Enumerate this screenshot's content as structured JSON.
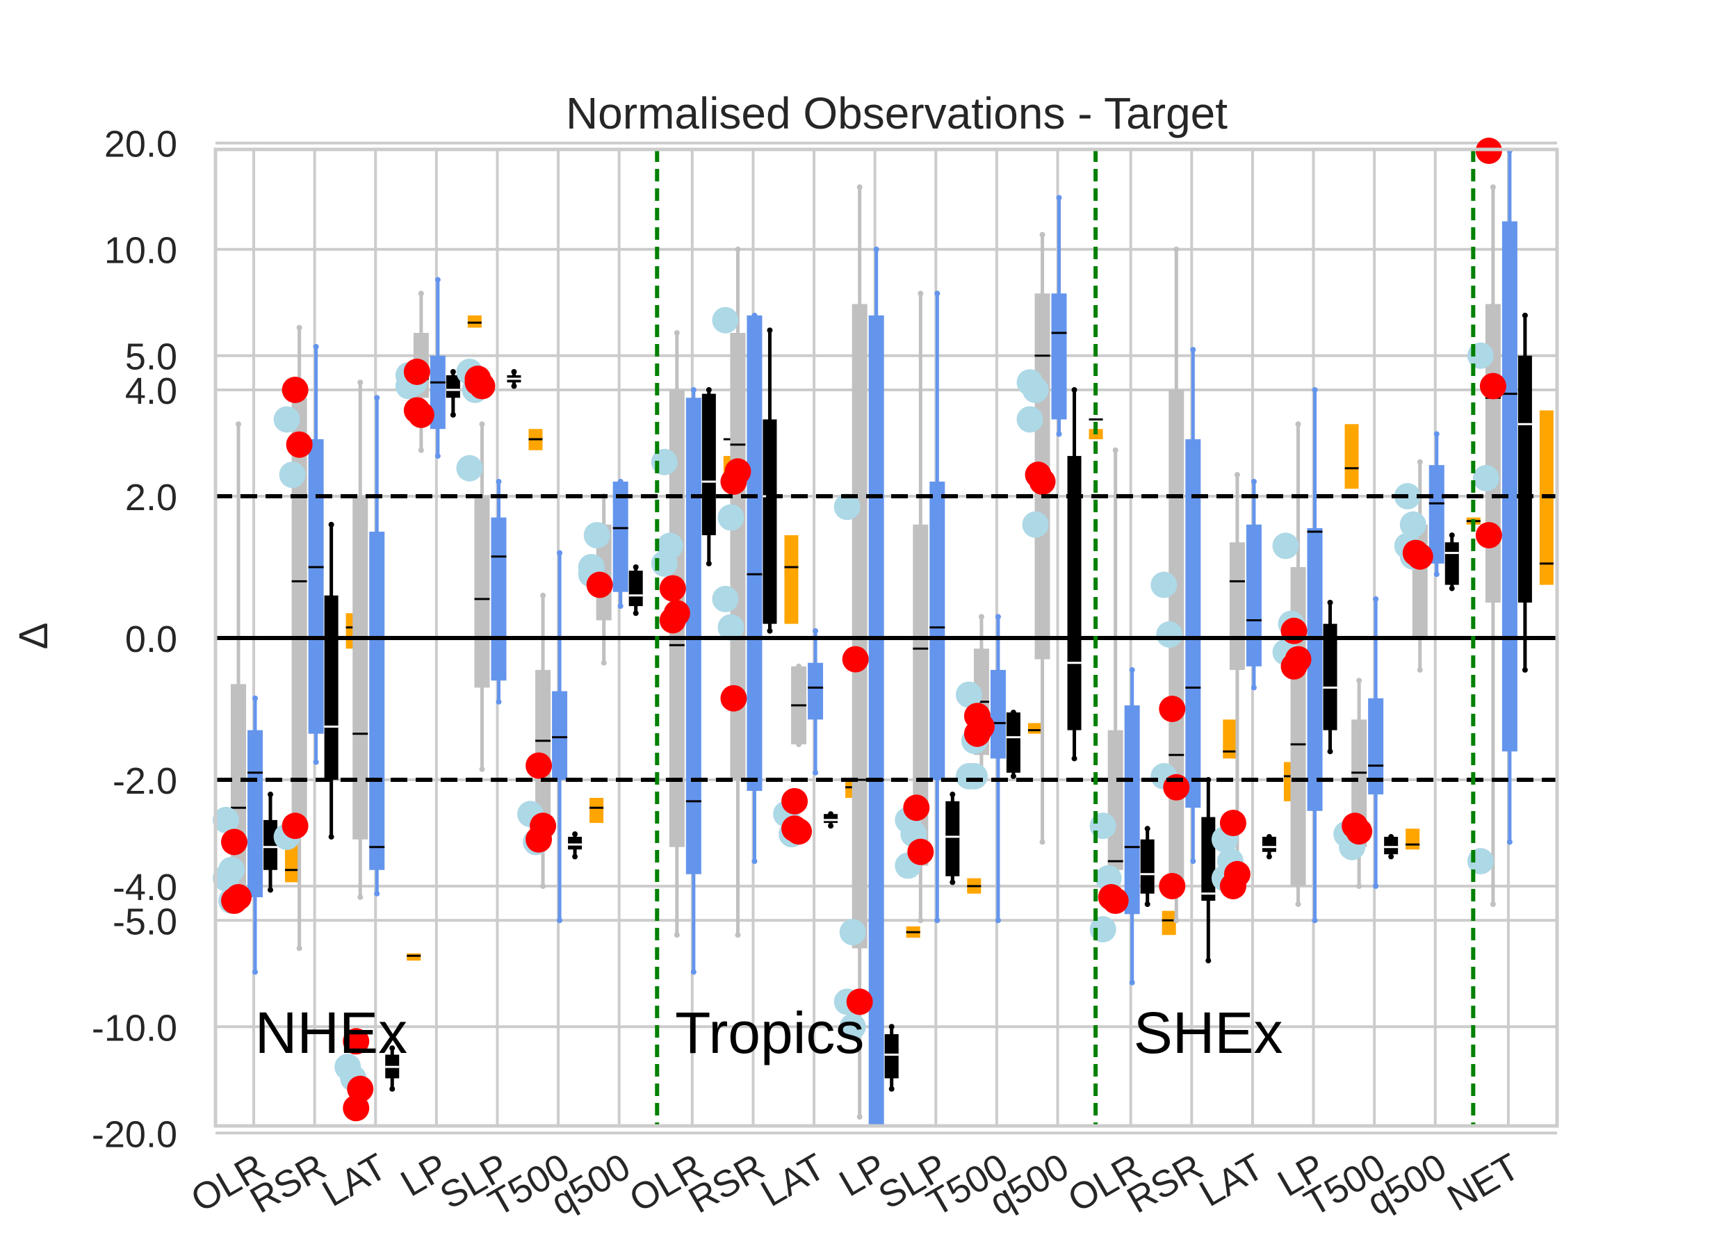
{
  "chart_data": {
    "type": "box",
    "title": "Normalised Observations - Target",
    "ylabel": "Δ",
    "xlabel": "",
    "y_scale": "piecewise: linear within [-2, 2], compressed (log-like) beyond ±2",
    "ylim": [
      -25,
      25
    ],
    "yticks": [
      "20.0",
      "10.0",
      "5.0",
      "4.0",
      "2.0",
      "0.0",
      "-2.0",
      "-4.0",
      "-5.0",
      "-10.0",
      "-20.0"
    ],
    "ytick_values": [
      20,
      10,
      5,
      4,
      2,
      0,
      -2,
      -4,
      -5,
      -10,
      -20
    ],
    "reference_lines": [
      {
        "y": 0,
        "style": "solid",
        "color": "#000000"
      },
      {
        "y": 2,
        "style": "dashed",
        "color": "#000000"
      },
      {
        "y": -2,
        "style": "dashed",
        "color": "#000000"
      }
    ],
    "region_separators_after": [
      "q500",
      "q500"
    ],
    "separator_color": "#008000",
    "categories": [
      "OLR",
      "RSR",
      "LAT",
      "LP",
      "SLP",
      "T500",
      "q500",
      "OLR",
      "RSR",
      "LAT",
      "LP",
      "SLP",
      "T500",
      "q500",
      "OLR",
      "RSR",
      "LAT",
      "LP",
      "T500",
      "q500",
      "NET"
    ],
    "regions": [
      {
        "name": "NHEx",
        "first": 0,
        "last": 6
      },
      {
        "name": "Tropics",
        "first": 7,
        "last": 13
      },
      {
        "name": "SHEx",
        "first": 14,
        "last": 19
      }
    ],
    "colors": {
      "box_gray": "#c0c0c0",
      "box_blue": "#6495ed",
      "box_black": "#000000",
      "orange": "#ffa500",
      "red_points": "#ff0000",
      "lightblue_points": "#add8e6",
      "grid": "#cccccc"
    },
    "variables": [
      {
        "gray": [
          -4.5,
          -4.5,
          -0.65,
          -2.4,
          3.2
        ],
        "blue": [
          -7,
          -4.3,
          -1.3,
          -1.9,
          -0.85
        ],
        "black": [
          -4.1,
          -3.6,
          -2.6,
          -3.1,
          -2.2
        ],
        "orange": [
          -3.9,
          -2.7,
          -3.6
        ],
        "red": [
          -3.0,
          -4.3,
          -4.4
        ],
        "lightblue": [
          -2.6,
          -3.6,
          -3.8,
          -4.4
        ]
      },
      {
        "gray": [
          -6,
          -2.6,
          3.8,
          0.8,
          6
        ],
        "blue": [
          -1.75,
          -1.35,
          2.9,
          1.0,
          5.3
        ],
        "black": [
          -2.9,
          -2.0,
          0.6,
          -1.25,
          1.6
        ],
        "orange": [
          -0.15,
          0.35,
          0.15
        ],
        "red": [
          4.0,
          2.8,
          -2.7
        ],
        "lightblue": [
          3.3,
          2.3,
          -2.9
        ]
      },
      {
        "gray": [
          -4.3,
          -2.95,
          2.0,
          -1.35,
          4.2
        ],
        "blue": [
          -4.2,
          -3.6,
          1.5,
          -3.1,
          3.8
        ],
        "black": [
          -15,
          -14,
          -12,
          -13,
          -11.5
        ],
        "orange": [
          -6.5,
          -6.2,
          -6.3
        ],
        "red": [
          -17,
          -15,
          -11
        ],
        "lightblue": [
          -13,
          -14
        ]
      },
      {
        "gray": [
          2.7,
          3.8,
          5.8,
          4.3,
          7.5
        ],
        "blue": [
          2.6,
          3.1,
          5.0,
          4.2,
          8.2
        ],
        "black": [
          3.4,
          3.8,
          4.4,
          4.0,
          4.5
        ],
        "orange": [
          6.0,
          6.5,
          6.2
        ],
        "red": [
          4.5,
          3.4,
          3.5
        ],
        "lightblue": [
          4.1,
          4.2,
          4.4
        ]
      },
      {
        "gray": [
          -1.85,
          -0.7,
          2.0,
          0.55,
          3.2
        ],
        "blue": [
          -0.9,
          -0.6,
          1.7,
          1.15,
          2.2
        ],
        "black": [
          4.1,
          4.2,
          4.4,
          4.3,
          4.5
        ],
        "orange": [
          2.7,
          3.1,
          2.9
        ],
        "red": [
          4.3,
          4.1,
          4.2
        ],
        "lightblue": [
          4.5,
          4.0,
          2.4
        ]
      },
      {
        "gray": [
          -4.0,
          -2.9,
          -0.45,
          -1.45,
          0.6
        ],
        "blue": [
          -5.0,
          -2.0,
          -0.75,
          -1.4,
          1.2
        ],
        "black": [
          -3.3,
          -3.15,
          -2.9,
          -3.05,
          -2.85
        ],
        "orange": [
          -2.65,
          -2.25,
          -2.4
        ],
        "red": [
          -1.8,
          -2.7,
          -2.95
        ],
        "lightblue": [
          -2.5,
          -3.0
        ]
      },
      {
        "gray": [
          -0.35,
          0.25,
          1.6,
          0.8,
          2.0
        ],
        "blue": [
          0.45,
          0.65,
          2.2,
          1.55,
          2.2
        ],
        "black": [
          0.35,
          0.45,
          0.95,
          0.6,
          1.0
        ],
        "orange": [],
        "red": [
          0.75
        ],
        "lightblue": [
          0.9,
          1.45,
          1.0
        ]
      },
      {
        "gray": [
          -5.5,
          -3.1,
          4.0,
          -0.1,
          5.8
        ],
        "blue": [
          -7,
          -3.7,
          3.8,
          -2.3,
          4.0
        ],
        "black": [
          1.05,
          1.45,
          3.9,
          2.2,
          4.0
        ],
        "orange": [
          2.3,
          2.6,
          2.9
        ],
        "red": [
          0.7,
          0.35,
          0.25
        ],
        "lightblue": [
          2.5,
          1.3,
          1.05
        ]
      },
      {
        "gray": [
          -5.5,
          -2.0,
          5.8,
          2.8,
          10
        ],
        "blue": [
          -3.4,
          -2.15,
          6.5,
          0.9,
          6.5
        ],
        "black": [
          0.1,
          0.2,
          3.3,
          2.0,
          5.9
        ],
        "orange": [
          0.2,
          1.45,
          1.0
        ],
        "red": [
          2.2,
          2.35,
          -0.85
        ],
        "lightblue": [
          6.3,
          1.7,
          0.55,
          0.15
        ]
      },
      {
        "gray": [
          -1.5,
          -1.5,
          -0.4,
          -0.95,
          -0.4
        ],
        "blue": [
          -1.9,
          -1.15,
          -0.35,
          -0.7,
          0.1
        ],
        "black": [
          -2.7,
          -2.65,
          -2.5,
          -2.6,
          -2.5
        ],
        "orange": [
          -2.25,
          -2.0,
          -2.1
        ],
        "red": [
          -2.3,
          -2.8,
          -2.75
        ],
        "lightblue": [
          -2.5,
          -2.85
        ]
      },
      {
        "gray": [
          -18,
          -6,
          7.0,
          -2.0,
          15
        ],
        "blue": [
          -25,
          -25,
          6.5,
          -2.0,
          10
        ],
        "black": [
          -15,
          -14,
          -10.5,
          -12,
          -10
        ],
        "orange": [
          -5.6,
          -5.2,
          -5.4
        ],
        "red": [
          -0.3,
          -8.5
        ],
        "lightblue": [
          1.85,
          -5.4,
          -8.5,
          -10
        ]
      },
      {
        "gray": [
          -5,
          -3.5,
          1.6,
          -0.15,
          7.5
        ],
        "blue": [
          -5,
          -2.0,
          2.2,
          0.15,
          7.5
        ],
        "black": [
          -3.9,
          -3.75,
          -2.3,
          -2.9,
          -2.2
        ],
        "orange": [
          -4.2,
          -3.8,
          -4.0
        ],
        "red": [
          -2.4,
          -3.2
        ],
        "lightblue": [
          -2.6,
          -2.85,
          -3.5
        ]
      },
      {
        "gray": [
          -2.0,
          -1.65,
          -0.15,
          -0.9,
          0.3
        ],
        "blue": [
          -5.0,
          -1.7,
          -0.45,
          -1.2,
          0.3
        ],
        "black": [
          -1.95,
          -1.9,
          -1.05,
          -1.4,
          -1.05
        ],
        "orange": [
          -1.35,
          -1.2,
          -1.3
        ],
        "red": [
          -1.1,
          -1.25,
          -1.35
        ],
        "lightblue": [
          -0.8,
          -1.45,
          -1.95,
          -1.95
        ]
      },
      {
        "gray": [
          -3,
          -0.3,
          7.5,
          5.0,
          11
        ],
        "blue": [
          3.0,
          3.3,
          7.5,
          5.8,
          14
        ],
        "black": [
          -1.7,
          -1.3,
          2.6,
          -0.35,
          4.0
        ],
        "orange": [
          2.9,
          3.1,
          3.3
        ],
        "red": [
          2.3,
          2.2
        ],
        "lightblue": [
          4.2,
          4.0,
          3.3,
          1.6
        ]
      },
      {
        "gray": [
          -4.1,
          -3.6,
          -1.3,
          -3.4,
          2.7
        ],
        "blue": [
          -7.5,
          -4.8,
          -0.95,
          -3.1,
          -0.45
        ],
        "black": [
          -4.5,
          -4.2,
          -2.95,
          -3.7,
          -2.75
        ],
        "orange": [
          -5.5,
          -4.7,
          -5.0
        ],
        "red": [
          -4.3,
          -4.4
        ],
        "lightblue": [
          -2.7,
          -3.8,
          -5.3
        ]
      },
      {
        "gray": [
          -5.0,
          -4.0,
          4.0,
          -1.65,
          10
        ],
        "blue": [
          -3.4,
          -2.4,
          2.9,
          -0.7,
          5.2
        ],
        "black": [
          -6.5,
          -4.4,
          -2.55,
          -4.2,
          -2.0
        ],
        "orange": [
          -1.7,
          -1.15,
          -1.6
        ],
        "red": [
          -1.0,
          -2.1,
          -4.0
        ],
        "lightblue": [
          0.75,
          0.05,
          -1.95
        ]
      },
      {
        "gray": [
          -3.9,
          -0.45,
          1.35,
          0.8,
          2.3
        ],
        "blue": [
          -0.7,
          -0.4,
          1.6,
          0.25,
          2.2
        ],
        "black": [
          -3.3,
          -3.2,
          -2.9,
          -3.1,
          -2.9
        ],
        "orange": [
          -2.3,
          -1.75,
          -1.95
        ],
        "red": [
          -2.65,
          -3.7,
          -4.0
        ],
        "lightblue": [
          -2.95,
          -3.4,
          -3.8
        ]
      },
      {
        "gray": [
          -4.5,
          -4.0,
          1.0,
          -1.5,
          3.2
        ],
        "blue": [
          -5.0,
          -2.45,
          1.55,
          1.5,
          4.0
        ],
        "black": [
          -1.6,
          -1.3,
          0.2,
          -0.7,
          0.5
        ],
        "orange": [
          2.1,
          3.2,
          2.4
        ],
        "red": [
          0.1,
          -0.3,
          -0.4
        ],
        "lightblue": [
          1.3,
          0.2,
          -0.2
        ]
      },
      {
        "gray": [
          -4.0,
          -3.1,
          -1.15,
          -1.9,
          -0.6
        ],
        "blue": [
          -4.0,
          -2.2,
          -0.85,
          -1.8,
          0.55
        ],
        "black": [
          -3.3,
          -3.25,
          -2.9,
          -3.1,
          -2.9
        ],
        "orange": [
          -3.15,
          -2.75,
          -3.05
        ],
        "red": [
          -2.7,
          -2.8
        ],
        "lightblue": [
          -2.85,
          -3.1
        ]
      },
      {
        "gray": [
          -0.45,
          0.0,
          1.6,
          1.1,
          2.5
        ],
        "blue": [
          0.9,
          1.05,
          2.45,
          1.9,
          3.0
        ],
        "black": [
          0.7,
          0.75,
          1.35,
          1.2,
          1.45
        ],
        "orange": [
          1.6,
          1.7,
          1.65
        ],
        "red": [
          1.2,
          1.15
        ],
        "lightblue": [
          1.3,
          1.6,
          2.0,
          1.15
        ]
      },
      {
        "gray": [
          -4.5,
          0.5,
          7.0,
          3.8,
          15
        ],
        "blue": [
          -3.0,
          -1.6,
          12,
          3.9,
          20
        ],
        "black": [
          -0.45,
          0.5,
          5.0,
          3.2,
          6.5
        ],
        "orange": [
          0.75,
          3.5,
          1.05
        ],
        "red": [
          22,
          4.1,
          1.45
        ],
        "lightblue": [
          5.0,
          2.25,
          -3.4
        ]
      }
    ]
  }
}
